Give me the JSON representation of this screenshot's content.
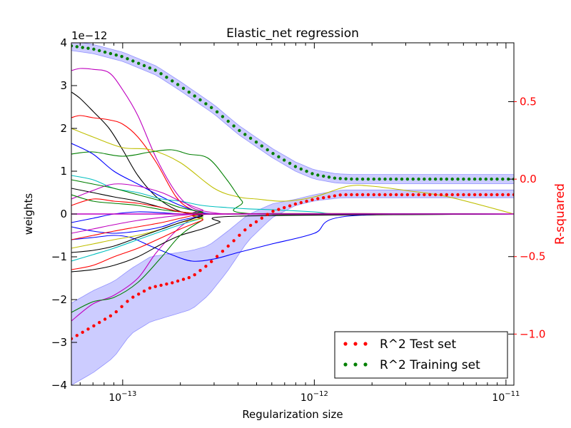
{
  "chart_data": {
    "type": "line",
    "title": "Elastic_net regression",
    "xlabel": "Regularization size",
    "ylabel_left": "weights",
    "ylabel_right": "R-squared",
    "left_offset_label": "1e−12",
    "x_scale": "log",
    "x_range": [
      5.4e-14,
      1.1e-11
    ],
    "y_left_range": [
      -4,
      4
    ],
    "y_left_ticks": [
      {
        "value": 4,
        "label": "4"
      },
      {
        "value": 3,
        "label": "3"
      },
      {
        "value": 2,
        "label": "2"
      },
      {
        "value": 1,
        "label": "1"
      },
      {
        "value": 0,
        "label": "0"
      },
      {
        "value": -1,
        "label": "−1"
      },
      {
        "value": -2,
        "label": "−2"
      },
      {
        "value": -3,
        "label": "−3"
      },
      {
        "value": -4,
        "label": "−4"
      }
    ],
    "y_right_range": [
      -1.33,
      0.88
    ],
    "y_right_ticks": [
      {
        "value": 0.5,
        "label": "0.5"
      },
      {
        "value": 0.0,
        "label": "0.0"
      },
      {
        "value": -0.5,
        "label": "−0.5"
      },
      {
        "value": -1.0,
        "label": "−1.0"
      }
    ],
    "x_ticks": [
      {
        "value": 1e-13,
        "base": "10",
        "exp": "−13"
      },
      {
        "value": 1e-12,
        "base": "10",
        "exp": "−12"
      },
      {
        "value": 1e-11,
        "base": "10",
        "exp": "−11"
      }
    ],
    "grid": false,
    "legend_position": "bottom-right",
    "legend": [
      {
        "label": "R^2 Test set",
        "color": "#ff0000"
      },
      {
        "label": "R^2 Training set",
        "color": "#007f00"
      }
    ],
    "right_axis_color": "#ff0000",
    "band_color": "#0000ff",
    "series": [
      {
        "name": "R^2 Training set",
        "axis": "right",
        "color": "#007f00",
        "x": [
          5.4e-14,
          7e-14,
          1e-13,
          1.5e-13,
          2e-13,
          3e-13,
          4e-13,
          6e-13,
          8e-13,
          1e-12,
          1.3e-12,
          1.6e-12,
          2e-12,
          5e-12,
          1.1e-11
        ],
        "y": [
          0.86,
          0.84,
          0.79,
          0.7,
          0.6,
          0.45,
          0.32,
          0.17,
          0.08,
          0.03,
          0.005,
          0.0,
          0.0,
          0.0,
          0.0
        ],
        "band": 0.03
      },
      {
        "name": "R^2 Test set",
        "axis": "right",
        "color": "#ff0000",
        "x": [
          5.4e-14,
          7e-14,
          9e-14,
          1.1e-13,
          1.4e-13,
          1.8e-13,
          2.3e-13,
          2.8e-13,
          3.5e-13,
          4.5e-13,
          6e-13,
          8e-13,
          1e-12,
          1.4e-12,
          2e-12,
          5e-12,
          1.1e-11
        ],
        "y": [
          -1.03,
          -0.95,
          -0.87,
          -0.77,
          -0.7,
          -0.67,
          -0.63,
          -0.55,
          -0.44,
          -0.31,
          -0.21,
          -0.16,
          -0.13,
          -0.1,
          -0.1,
          -0.1,
          -0.1
        ],
        "band_low": [
          -1.33,
          -1.25,
          -1.15,
          -1.0,
          -0.92,
          -0.88,
          -0.84,
          -0.75,
          -0.6,
          -0.4,
          -0.25,
          -0.17,
          -0.14,
          -0.12,
          -0.12,
          -0.12,
          -0.12
        ],
        "band_high": [
          -0.8,
          -0.72,
          -0.66,
          -0.58,
          -0.5,
          -0.48,
          -0.46,
          -0.43,
          -0.34,
          -0.23,
          -0.16,
          -0.13,
          -0.1,
          -0.07,
          -0.07,
          -0.07,
          -0.07
        ]
      },
      {
        "axis": "left",
        "color": "#bf00bf",
        "x": [
          5.4e-14,
          6e-14,
          7e-14,
          8.5e-14,
          1e-13,
          1.2e-13,
          1.5e-13,
          1.9e-13,
          2.3e-13,
          2.8e-13,
          3.5e-13,
          5e-13,
          1.1e-11
        ],
        "y": [
          3.35,
          3.4,
          3.38,
          3.3,
          2.9,
          2.3,
          1.3,
          0.5,
          0.15,
          0.05,
          0.0,
          0.0,
          0.0
        ]
      },
      {
        "axis": "left",
        "color": "#000000",
        "x": [
          5.4e-14,
          6e-14,
          7e-14,
          8.5e-14,
          1e-13,
          1.2e-13,
          1.5e-13,
          1.9e-13,
          2.3e-13,
          2.8e-13,
          3.5e-13,
          5e-13,
          1.1e-11
        ],
        "y": [
          2.85,
          2.7,
          2.4,
          2.0,
          1.5,
          0.9,
          0.4,
          0.1,
          0.0,
          0.0,
          0.0,
          0.0,
          0.0
        ]
      },
      {
        "axis": "left",
        "color": "#ff0000",
        "x": [
          5.4e-14,
          6e-14,
          7e-14,
          8.5e-14,
          1e-13,
          1.2e-13,
          1.5e-13,
          1.9e-13,
          2.3e-13,
          2.8e-13,
          3.5e-13,
          5e-13,
          1.1e-11
        ],
        "y": [
          2.25,
          2.3,
          2.25,
          2.2,
          2.1,
          1.8,
          1.2,
          0.4,
          0.1,
          0.0,
          0.0,
          0.0,
          0.0
        ]
      },
      {
        "axis": "left",
        "color": "#bfbf00",
        "x": [
          5.4e-14,
          7e-14,
          1e-13,
          1.4e-13,
          2e-13,
          3e-13,
          4e-13,
          5e-13,
          7e-13,
          1e-12,
          1.5e-12,
          2e-12,
          3e-12,
          5e-12,
          1.1e-11
        ],
        "y": [
          2.0,
          1.8,
          1.55,
          1.5,
          1.2,
          0.6,
          0.4,
          0.35,
          0.3,
          0.4,
          0.65,
          0.65,
          0.55,
          0.4,
          0.0
        ]
      },
      {
        "axis": "left",
        "color": "#007f00",
        "x": [
          5.4e-14,
          7e-14,
          1e-13,
          1.4e-13,
          1.8e-13,
          2.2e-13,
          2.8e-13,
          3.5e-13,
          4.2e-13,
          5e-13,
          1.1e-11
        ],
        "y": [
          1.4,
          1.45,
          1.35,
          1.45,
          1.5,
          1.4,
          1.3,
          0.8,
          0.3,
          0.0,
          0.0
        ]
      },
      {
        "axis": "left",
        "color": "#0000ff",
        "x": [
          5.4e-14,
          7e-14,
          9e-14,
          1.2e-13,
          1.6e-13,
          2e-13,
          2.5e-13,
          3e-13,
          4e-13,
          1.1e-11
        ],
        "y": [
          1.65,
          1.4,
          1.0,
          0.7,
          0.4,
          0.2,
          0.05,
          0.0,
          0.0,
          0.0
        ]
      },
      {
        "axis": "left",
        "color": "#00bfbf",
        "x": [
          5.4e-14,
          7e-14,
          9e-14,
          1.2e-13,
          1.6e-13,
          2e-13,
          2.6e-13,
          3.5e-13,
          4.5e-13,
          6e-13,
          1e-12,
          1.5e-12,
          1.1e-11
        ],
        "y": [
          0.9,
          0.8,
          0.6,
          0.5,
          0.35,
          0.3,
          0.2,
          0.15,
          0.12,
          0.1,
          0.05,
          0.0,
          0.0
        ]
      },
      {
        "axis": "left",
        "color": "#000000",
        "x": [
          5.4e-14,
          7e-14,
          9e-14,
          1.2e-13,
          1.6e-13,
          2e-13,
          2.6e-13,
          3.2e-13,
          1.1e-11
        ],
        "y": [
          0.6,
          0.5,
          0.4,
          0.3,
          0.15,
          0.05,
          0.0,
          0.0,
          0.0
        ]
      },
      {
        "axis": "left",
        "color": "#bf00bf",
        "x": [
          5.4e-14,
          7e-14,
          9e-14,
          1.2e-13,
          1.6e-13,
          2e-13,
          2.6e-13,
          3.2e-13,
          1.1e-11
        ],
        "y": [
          0.35,
          0.55,
          0.7,
          0.65,
          0.5,
          0.3,
          0.1,
          0.0,
          0.0
        ]
      },
      {
        "axis": "left",
        "color": "#007f00",
        "x": [
          5.4e-14,
          7e-14,
          9e-14,
          1.2e-13,
          1.6e-13,
          2e-13,
          2.6e-13,
          3.2e-13,
          1.1e-11
        ],
        "y": [
          0.45,
          0.3,
          0.25,
          0.2,
          0.1,
          0.05,
          0.0,
          0.0,
          0.0
        ]
      },
      {
        "axis": "left",
        "color": "#ff0000",
        "x": [
          5.4e-14,
          7e-14,
          9e-14,
          1.2e-13,
          1.6e-13,
          2e-13,
          2.6e-13,
          3.2e-13,
          1.1e-11
        ],
        "y": [
          0.2,
          0.35,
          0.3,
          0.25,
          0.15,
          0.05,
          0.0,
          0.0,
          0.0
        ]
      },
      {
        "axis": "left",
        "color": "#0000ff",
        "x": [
          5.4e-14,
          7e-14,
          9e-14,
          1.2e-13,
          1.6e-13,
          2e-13,
          2.6e-13,
          1.1e-11
        ],
        "y": [
          -0.2,
          -0.1,
          0.0,
          0.05,
          0.03,
          0.0,
          0.0,
          0.0
        ]
      },
      {
        "axis": "left",
        "color": "#0000ff",
        "x": [
          5.4e-14,
          7e-14,
          9e-14,
          1.1e-13,
          1.4e-13,
          1.8e-13,
          2.3e-13,
          3e-13,
          4e-13,
          6e-13,
          1e-12,
          1.5e-12,
          1.1e-11
        ],
        "y": [
          -0.6,
          -0.55,
          -0.5,
          -0.55,
          -0.75,
          -0.95,
          -1.1,
          -1.05,
          -0.9,
          -0.7,
          -0.45,
          -0.05,
          0.0
        ]
      },
      {
        "axis": "left",
        "color": "#bf00bf",
        "x": [
          5.4e-14,
          7e-14,
          9e-14,
          1.2e-13,
          1.5e-13,
          2e-13,
          2.5e-13,
          3e-13,
          1.1e-11
        ],
        "y": [
          -2.5,
          -2.1,
          -1.9,
          -1.5,
          -0.9,
          -0.3,
          -0.05,
          0.0,
          0.0
        ]
      },
      {
        "axis": "left",
        "color": "#000000",
        "x": [
          5.4e-14,
          7e-14,
          9e-14,
          1.2e-13,
          1.6e-13,
          2e-13,
          2.6e-13,
          3.2e-13,
          4e-13,
          1.1e-11
        ],
        "y": [
          -1.35,
          -1.3,
          -1.2,
          -1.0,
          -0.7,
          -0.5,
          -0.35,
          -0.2,
          -0.05,
          0.0
        ]
      },
      {
        "axis": "left",
        "color": "#007f00",
        "x": [
          5.4e-14,
          7e-14,
          9e-14,
          1.2e-13,
          1.6e-13,
          2e-13,
          2.6e-13,
          3.2e-13,
          1.1e-11
        ],
        "y": [
          -2.3,
          -2.05,
          -1.95,
          -1.6,
          -1.0,
          -0.5,
          -0.15,
          0.0,
          0.0
        ]
      },
      {
        "axis": "left",
        "color": "#ff0000",
        "x": [
          5.4e-14,
          7e-14,
          9e-14,
          1.2e-13,
          1.6e-13,
          2e-13,
          2.6e-13,
          3.2e-13,
          1.1e-11
        ],
        "y": [
          -1.3,
          -1.2,
          -1.0,
          -0.8,
          -0.55,
          -0.35,
          -0.15,
          0.0,
          0.0
        ]
      },
      {
        "axis": "left",
        "color": "#00bfbf",
        "x": [
          5.4e-14,
          7e-14,
          9e-14,
          1.2e-13,
          1.6e-13,
          2e-13,
          2.6e-13,
          3.2e-13,
          1.1e-11
        ],
        "y": [
          -1.1,
          -0.95,
          -0.8,
          -0.6,
          -0.4,
          -0.25,
          -0.1,
          0.0,
          0.0
        ]
      },
      {
        "axis": "left",
        "color": "#bfbf00",
        "x": [
          5.4e-14,
          7e-14,
          9e-14,
          1.2e-13,
          1.6e-13,
          2e-13,
          2.6e-13,
          3.2e-13,
          1.1e-11
        ],
        "y": [
          -0.8,
          -0.7,
          -0.6,
          -0.5,
          -0.35,
          -0.2,
          -0.1,
          0.0,
          0.0
        ]
      },
      {
        "axis": "left",
        "color": "#0000ff",
        "x": [
          5.4e-14,
          7e-14,
          9e-14,
          1.2e-13,
          1.6e-13,
          2e-13,
          2.6e-13,
          3.2e-13,
          1.1e-11
        ],
        "y": [
          -0.3,
          -0.4,
          -0.45,
          -0.4,
          -0.3,
          -0.15,
          -0.05,
          0.0,
          0.0
        ]
      },
      {
        "axis": "left",
        "color": "#000000",
        "x": [
          5.4e-14,
          7e-14,
          9e-14,
          1.2e-13,
          1.6e-13,
          2e-13,
          2.6e-13,
          3.2e-13,
          1.1e-11
        ],
        "y": [
          -0.9,
          -0.85,
          -0.75,
          -0.55,
          -0.35,
          -0.2,
          -0.05,
          0.0,
          0.0
        ]
      },
      {
        "axis": "left",
        "color": "#bf00bf",
        "x": [
          5.4e-14,
          7e-14,
          9e-14,
          1.2e-13,
          1.6e-13,
          2e-13,
          2.6e-13,
          3.2e-13,
          1.1e-11
        ],
        "y": [
          -0.45,
          -0.35,
          -0.25,
          -0.15,
          -0.08,
          -0.03,
          0.0,
          0.0,
          0.0
        ]
      },
      {
        "axis": "left",
        "color": "#007f00",
        "x": [
          5.4e-14,
          7e-14,
          9e-14,
          1.2e-13,
          1.6e-13,
          2e-13,
          2.6e-13,
          3.2e-13,
          1.1e-11
        ],
        "y": [
          0.8,
          0.7,
          0.6,
          0.45,
          0.3,
          0.15,
          0.05,
          0.0,
          0.0
        ]
      },
      {
        "axis": "left",
        "color": "#ff0000",
        "x": [
          5.4e-14,
          7e-14,
          9e-14,
          1.2e-13,
          1.6e-13,
          2e-13,
          2.6e-13,
          3.2e-13,
          1.1e-11
        ],
        "y": [
          -0.6,
          -0.5,
          -0.4,
          -0.3,
          -0.2,
          -0.1,
          0.0,
          0.0,
          0.0
        ]
      }
    ]
  }
}
